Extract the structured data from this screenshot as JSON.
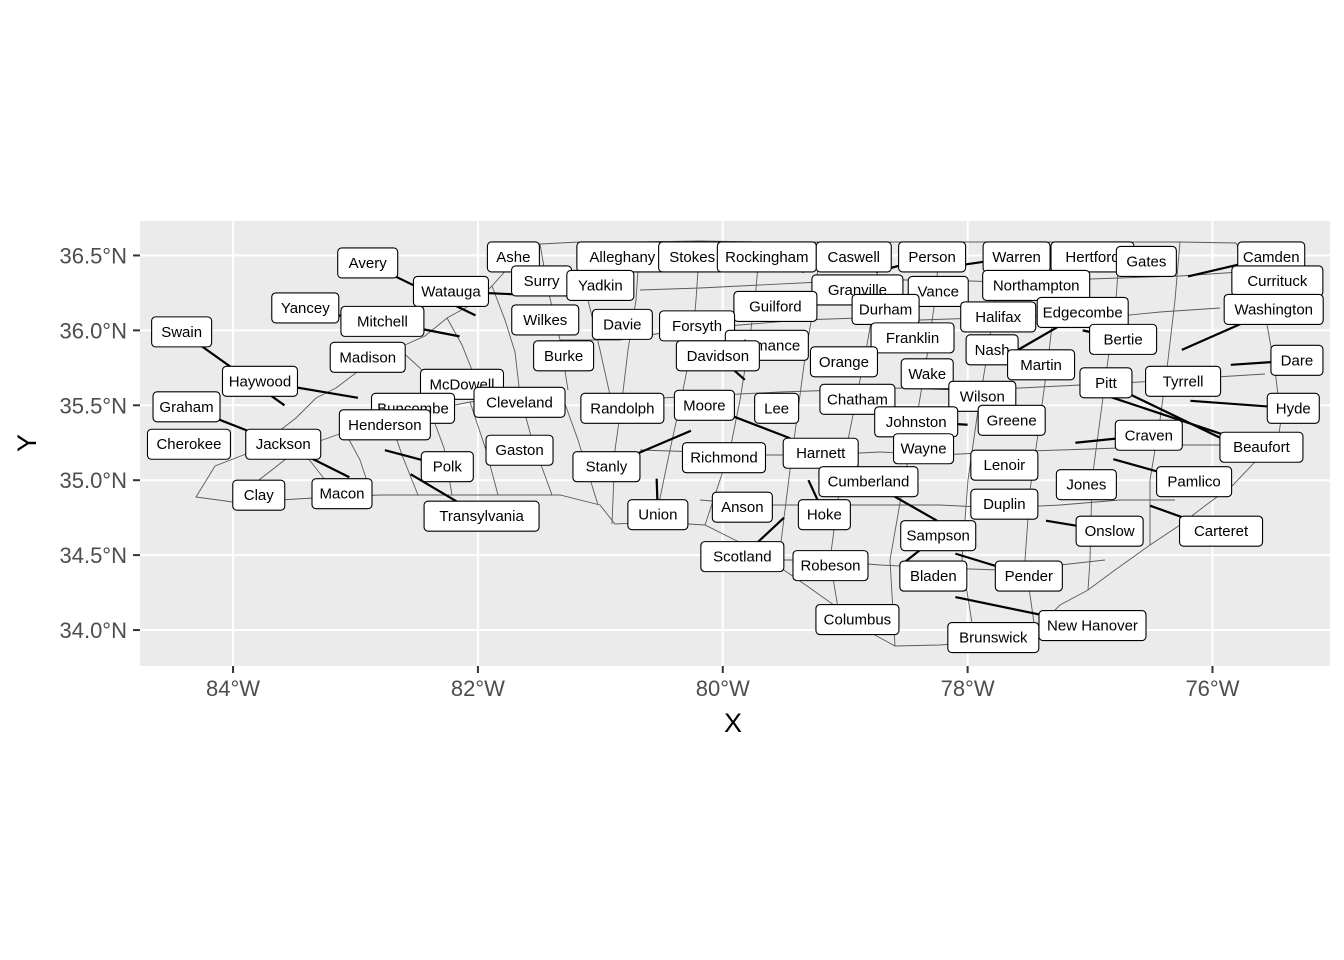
{
  "plot": {
    "panel_background": "#ebebeb",
    "grid_color": "#ffffff",
    "state_outline_color": "#5a5a5a",
    "label_fill": "#ffffff",
    "x_title": "X",
    "y_title": "Y",
    "x_ticks": [
      {
        "value": -84,
        "label": "84°W"
      },
      {
        "value": -82,
        "label": "82°W"
      },
      {
        "value": -80,
        "label": "80°W"
      },
      {
        "value": -78,
        "label": "78°W"
      },
      {
        "value": -76,
        "label": "76°W"
      }
    ],
    "y_ticks": [
      {
        "value": 34.0,
        "label": "34.0°N"
      },
      {
        "value": 34.5,
        "label": "34.5°N"
      },
      {
        "value": 35.0,
        "label": "35.0°N"
      },
      {
        "value": 35.5,
        "label": "35.5°N"
      },
      {
        "value": 36.0,
        "label": "36.0°N"
      },
      {
        "value": 36.5,
        "label": "36.5°N"
      }
    ],
    "xlim": [
      -84.76,
      -75.04
    ],
    "ylim": [
      33.76,
      36.73
    ]
  },
  "labels": [
    {
      "name": "Ashe",
      "lon": -81.71,
      "lat": 36.49,
      "anchor": [
        -81.45,
        36.41
      ]
    },
    {
      "name": "Alleghany",
      "lon": -80.82,
      "lat": 36.49
    },
    {
      "name": "Stokes",
      "lon": -80.25,
      "lat": 36.49
    },
    {
      "name": "Rockingham",
      "lon": -79.64,
      "lat": 36.49
    },
    {
      "name": "Caswell",
      "lon": -78.93,
      "lat": 36.49,
      "anchor": [
        -79.35,
        36.39
      ]
    },
    {
      "name": "Person",
      "lon": -78.29,
      "lat": 36.49,
      "anchor": [
        -78.75,
        36.39
      ]
    },
    {
      "name": "Warren",
      "lon": -77.6,
      "lat": 36.49,
      "anchor": [
        -78.1,
        36.43
      ]
    },
    {
      "name": "Hertford",
      "lon": -76.98,
      "lat": 36.49
    },
    {
      "name": "Gates",
      "lon": -76.54,
      "lat": 36.46,
      "anchor": [
        -76.88,
        36.42
      ]
    },
    {
      "name": "Camden",
      "lon": -75.52,
      "lat": 36.49,
      "anchor": [
        -76.2,
        36.36
      ]
    },
    {
      "name": "Avery",
      "lon": -82.9,
      "lat": 36.45,
      "anchor": [
        -82.02,
        36.1
      ]
    },
    {
      "name": "Surry",
      "lon": -81.48,
      "lat": 36.33,
      "anchor": [
        -81.12,
        36.41
      ]
    },
    {
      "name": "Yadkin",
      "lon": -81.0,
      "lat": 36.3,
      "anchor": [
        -81.25,
        36.26
      ]
    },
    {
      "name": "Granville",
      "lon": -78.9,
      "lat": 36.27
    },
    {
      "name": "Vance",
      "lon": -78.24,
      "lat": 36.26
    },
    {
      "name": "Northampton",
      "lon": -77.44,
      "lat": 36.3
    },
    {
      "name": "Currituck",
      "lon": -75.47,
      "lat": 36.33
    },
    {
      "name": "Watauga",
      "lon": -82.22,
      "lat": 36.26,
      "anchor": [
        -81.68,
        36.24
      ]
    },
    {
      "name": "Yancey",
      "lon": -83.41,
      "lat": 36.15,
      "anchor": [
        -83.08,
        36.09
      ]
    },
    {
      "name": "Guilford",
      "lon": -79.57,
      "lat": 36.16
    },
    {
      "name": "Durham",
      "lon": -78.67,
      "lat": 36.14
    },
    {
      "name": "Washington",
      "lon": -75.5,
      "lat": 36.14,
      "anchor": [
        -76.25,
        35.87
      ]
    },
    {
      "name": "Edgecombe",
      "lon": -77.06,
      "lat": 36.12,
      "anchor": [
        -77.63,
        35.85
      ]
    },
    {
      "name": "Mitchell",
      "lon": -82.78,
      "lat": 36.06,
      "anchor": [
        -82.15,
        35.96
      ]
    },
    {
      "name": "Wilkes",
      "lon": -81.45,
      "lat": 36.07,
      "anchor": [
        -81.2,
        36.14
      ]
    },
    {
      "name": "Halifax",
      "lon": -77.75,
      "lat": 36.09
    },
    {
      "name": "Davie",
      "lon": -80.82,
      "lat": 36.04
    },
    {
      "name": "Forsyth",
      "lon": -80.21,
      "lat": 36.03
    },
    {
      "name": "Swain",
      "lon": -84.42,
      "lat": 35.99,
      "anchor": [
        -83.58,
        35.5
      ]
    },
    {
      "name": "Franklin",
      "lon": -78.45,
      "lat": 35.95
    },
    {
      "name": "Bertie",
      "lon": -76.73,
      "lat": 35.94,
      "anchor": [
        -77.06,
        36.0
      ]
    },
    {
      "name": "Alamance",
      "lon": -79.64,
      "lat": 35.9
    },
    {
      "name": "Madison",
      "lon": -82.9,
      "lat": 35.82
    },
    {
      "name": "Burke",
      "lon": -81.3,
      "lat": 35.83
    },
    {
      "name": "Nash",
      "lon": -77.8,
      "lat": 35.87
    },
    {
      "name": "Davidson",
      "lon": -80.04,
      "lat": 35.83,
      "anchor": [
        -79.82,
        35.67
      ]
    },
    {
      "name": "Orange",
      "lon": -79.01,
      "lat": 35.79
    },
    {
      "name": "Dare",
      "lon": -75.31,
      "lat": 35.8,
      "anchor": [
        -75.85,
        35.77
      ]
    },
    {
      "name": "Martin",
      "lon": -77.4,
      "lat": 35.77
    },
    {
      "name": "Wake",
      "lon": -78.33,
      "lat": 35.71
    },
    {
      "name": "Haywood",
      "lon": -83.78,
      "lat": 35.66,
      "anchor": [
        -82.98,
        35.55
      ]
    },
    {
      "name": "Pitt",
      "lon": -76.87,
      "lat": 35.65,
      "anchor": [
        -75.7,
        35.19
      ]
    },
    {
      "name": "Tyrrell",
      "lon": -76.24,
      "lat": 35.66
    },
    {
      "name": "McDowell",
      "lon": -82.13,
      "lat": 35.64
    },
    {
      "name": "Wilson",
      "lon": -77.88,
      "lat": 35.56
    },
    {
      "name": "Cleveland",
      "lon": -81.66,
      "lat": 35.52
    },
    {
      "name": "Graham",
      "lon": -84.38,
      "lat": 35.49,
      "anchor": [
        -83.85,
        35.32
      ]
    },
    {
      "name": "Buncombe",
      "lon": -82.53,
      "lat": 35.48
    },
    {
      "name": "Chatham",
      "lon": -78.9,
      "lat": 35.54
    },
    {
      "name": "Moore",
      "lon": -80.15,
      "lat": 35.5,
      "anchor": [
        -79.45,
        35.28
      ]
    },
    {
      "name": "Randolph",
      "lon": -80.82,
      "lat": 35.48
    },
    {
      "name": "Lee",
      "lon": -79.56,
      "lat": 35.48
    },
    {
      "name": "Hyde",
      "lon": -75.34,
      "lat": 35.48,
      "anchor": [
        -76.18,
        35.53
      ]
    },
    {
      "name": "Henderson",
      "lon": -82.76,
      "lat": 35.37
    },
    {
      "name": "Johnston",
      "lon": -78.42,
      "lat": 35.39,
      "anchor": [
        -78.0,
        35.37
      ]
    },
    {
      "name": "Greene",
      "lon": -77.64,
      "lat": 35.4
    },
    {
      "name": "Craven",
      "lon": -76.52,
      "lat": 35.3,
      "anchor": [
        -77.12,
        35.25
      ]
    },
    {
      "name": "Cherokee",
      "lon": -84.36,
      "lat": 35.24
    },
    {
      "name": "Jackson",
      "lon": -83.59,
      "lat": 35.24,
      "anchor": [
        -83.05,
        35.02
      ]
    },
    {
      "name": "Gaston",
      "lon": -81.66,
      "lat": 35.2
    },
    {
      "name": "Wayne",
      "lon": -78.36,
      "lat": 35.21
    },
    {
      "name": "Beaufort",
      "lon": -75.6,
      "lat": 35.22,
      "anchor": [
        -76.85,
        35.56
      ]
    },
    {
      "name": "Harnett",
      "lon": -79.2,
      "lat": 35.18
    },
    {
      "name": "Richmond",
      "lon": -79.99,
      "lat": 35.15
    },
    {
      "name": "Stanly",
      "lon": -80.95,
      "lat": 35.09,
      "anchor": [
        -80.26,
        35.33
      ]
    },
    {
      "name": "Polk",
      "lon": -82.25,
      "lat": 35.09,
      "anchor": [
        -82.76,
        35.2
      ]
    },
    {
      "name": "Lenoir",
      "lon": -77.7,
      "lat": 35.1
    },
    {
      "name": "Cumberland",
      "lon": -78.81,
      "lat": 34.99,
      "anchor": [
        -78.25,
        34.73
      ]
    },
    {
      "name": "Jones",
      "lon": -77.03,
      "lat": 34.97
    },
    {
      "name": "Pamlico",
      "lon": -76.15,
      "lat": 34.99,
      "anchor": [
        -76.81,
        35.14
      ]
    },
    {
      "name": "Clay",
      "lon": -83.79,
      "lat": 34.9
    },
    {
      "name": "Macon",
      "lon": -83.11,
      "lat": 34.91
    },
    {
      "name": "Duplin",
      "lon": -77.7,
      "lat": 34.84
    },
    {
      "name": "Anson",
      "lon": -79.84,
      "lat": 34.82
    },
    {
      "name": "Transylvania",
      "lon": -81.97,
      "lat": 34.76,
      "anchor": [
        -82.55,
        35.04
      ]
    },
    {
      "name": "Union",
      "lon": -80.53,
      "lat": 34.77,
      "anchor": [
        -80.54,
        35.01
      ]
    },
    {
      "name": "Hoke",
      "lon": -79.17,
      "lat": 34.77,
      "anchor": [
        -79.3,
        35.0
      ]
    },
    {
      "name": "Sampson",
      "lon": -78.24,
      "lat": 34.63,
      "anchor": [
        -78.55,
        34.43
      ]
    },
    {
      "name": "Onslow",
      "lon": -76.84,
      "lat": 34.66,
      "anchor": [
        -77.36,
        34.73
      ]
    },
    {
      "name": "Carteret",
      "lon": -75.93,
      "lat": 34.66,
      "anchor": [
        -76.51,
        34.83
      ]
    },
    {
      "name": "Scotland",
      "lon": -79.84,
      "lat": 34.49,
      "anchor": [
        -79.5,
        34.75
      ]
    },
    {
      "name": "Robeson",
      "lon": -79.12,
      "lat": 34.43
    },
    {
      "name": "Bladen",
      "lon": -78.28,
      "lat": 34.36
    },
    {
      "name": "Pender",
      "lon": -77.5,
      "lat": 34.36,
      "anchor": [
        -78.1,
        34.51
      ]
    },
    {
      "name": "Columbus",
      "lon": -78.9,
      "lat": 34.07
    },
    {
      "name": "New Hanover",
      "lon": -76.98,
      "lat": 34.03,
      "anchor": [
        -78.1,
        34.22
      ]
    },
    {
      "name": "Brunswick",
      "lon": -77.79,
      "lat": 33.95
    }
  ]
}
